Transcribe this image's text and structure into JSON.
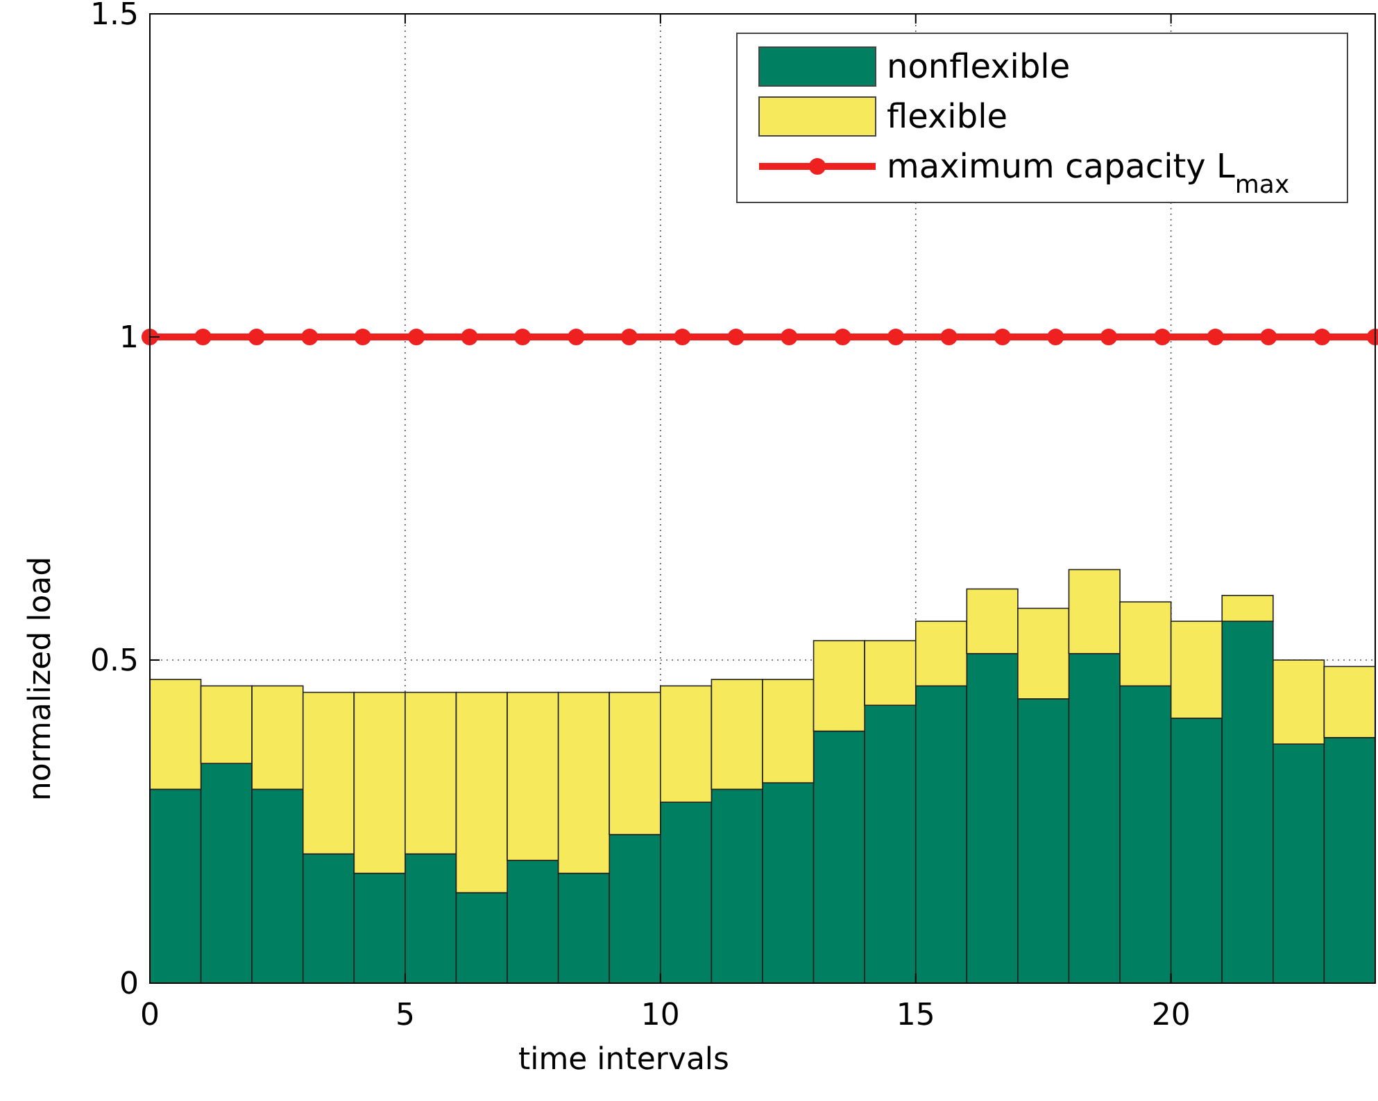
{
  "chart_data": {
    "type": "bar",
    "stacked": true,
    "xlabel": "time intervals",
    "ylabel": "normalized load",
    "x": [
      0.5,
      1.5,
      2.5,
      3.5,
      4.5,
      5.5,
      6.5,
      7.5,
      8.5,
      9.5,
      10.5,
      11.5,
      12.5,
      13.5,
      14.5,
      15.5,
      16.5,
      17.5,
      18.5,
      19.5,
      20.5,
      21.5,
      22.5,
      23.5
    ],
    "series": [
      {
        "name": "nonflexible",
        "color": "#008060",
        "values": [
          0.3,
          0.34,
          0.3,
          0.2,
          0.17,
          0.2,
          0.14,
          0.19,
          0.17,
          0.23,
          0.28,
          0.3,
          0.31,
          0.39,
          0.43,
          0.46,
          0.51,
          0.44,
          0.51,
          0.46,
          0.41,
          0.56,
          0.37,
          0.38
        ]
      },
      {
        "name": "flexible",
        "color": "#f7e95c",
        "values": [
          0.17,
          0.12,
          0.16,
          0.25,
          0.28,
          0.25,
          0.31,
          0.26,
          0.28,
          0.22,
          0.18,
          0.17,
          0.16,
          0.14,
          0.1,
          0.1,
          0.1,
          0.14,
          0.13,
          0.13,
          0.15,
          0.04,
          0.13,
          0.11
        ]
      },
      {
        "name": "maximum capacity L$_{max}$",
        "type": "line",
        "color": "#ee2020",
        "marker": "circle",
        "x": [
          0,
          1.04,
          2.09,
          3.13,
          4.17,
          5.22,
          6.26,
          7.3,
          8.35,
          9.39,
          10.43,
          11.48,
          12.52,
          13.57,
          14.61,
          15.65,
          16.7,
          17.74,
          18.78,
          19.83,
          20.87,
          21.91,
          22.96,
          24
        ],
        "values": [
          1,
          1,
          1,
          1,
          1,
          1,
          1,
          1,
          1,
          1,
          1,
          1,
          1,
          1,
          1,
          1,
          1,
          1,
          1,
          1,
          1,
          1,
          1,
          1
        ]
      }
    ],
    "xlim": [
      0,
      24
    ],
    "xticks": [
      0,
      5,
      10,
      15,
      20
    ],
    "ylim": [
      0,
      1.5
    ],
    "yticks": [
      0,
      0.5,
      1,
      1.5
    ],
    "grid": true,
    "legend": "top right"
  }
}
